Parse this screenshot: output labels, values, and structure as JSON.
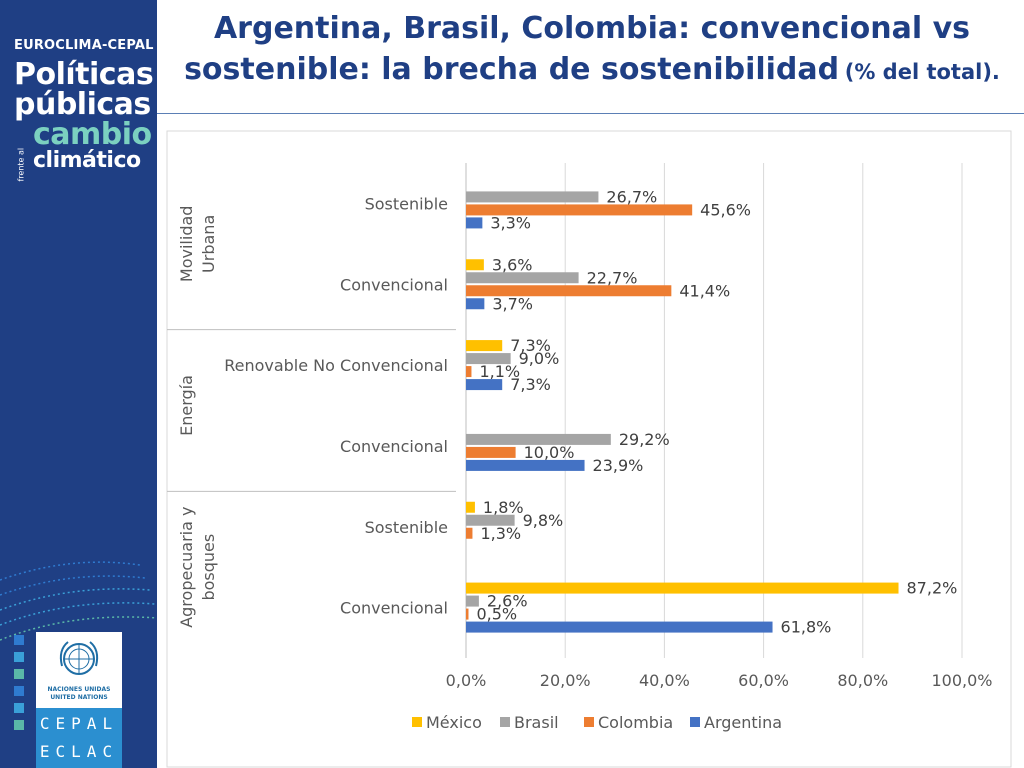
{
  "sidebar": {
    "brand": "EUROCLIMA-CEPAL",
    "line1": "Políticas",
    "line2": "públicas",
    "line3": "cambio",
    "line4": "climático",
    "frente": "frente al",
    "un_name_1": "NACIONES UNIDAS",
    "un_name_2": "UNITED NATIONS",
    "acronym_1": "CEPAL",
    "acronym_2": "ECLAC",
    "colors": {
      "background": "#1f3f84",
      "accent": "#7bd1c0",
      "un_blue": "#2b8fd0"
    },
    "icons": [
      "un-emblem-icon"
    ]
  },
  "header": {
    "title": "Argentina, Brasil, Colombia: convencional vs sostenible: la brecha de sostenibilidad",
    "title_unit": "(% del total)."
  },
  "chart_data": {
    "type": "bar",
    "orientation": "horizontal",
    "groups": [
      {
        "name": "Movilidad Urbana",
        "categories": [
          "Sostenible",
          "Convencional"
        ]
      },
      {
        "name": "Energía",
        "categories": [
          "Renovable No Convencional",
          "Convencional"
        ]
      },
      {
        "name": "Agropecuaria y bosques",
        "categories": [
          "Sostenible",
          "Convencional"
        ]
      }
    ],
    "series": [
      {
        "name": "México",
        "color": "#ffc000",
        "values": [
          null,
          3.6,
          7.3,
          null,
          1.8,
          87.2
        ],
        "labels": [
          "",
          "3,6%",
          "7,3%",
          "",
          "1,8%",
          "87,2%"
        ]
      },
      {
        "name": "Brasil",
        "color": "#a5a5a5",
        "values": [
          26.7,
          22.7,
          9.0,
          29.2,
          9.8,
          2.6
        ],
        "labels": [
          "26,7%",
          "22,7%",
          "9,0%",
          "29,2%",
          "9,8%",
          "2,6%"
        ]
      },
      {
        "name": "Colombia",
        "color": "#ed7d31",
        "values": [
          45.6,
          41.4,
          1.1,
          10.0,
          1.3,
          0.5
        ],
        "labels": [
          "45,6%",
          "41,4%",
          "1,1%",
          "10,0%",
          "1,3%",
          "0,5%"
        ]
      },
      {
        "name": "Argentina",
        "color": "#4472c4",
        "values": [
          3.3,
          3.7,
          7.3,
          23.9,
          null,
          61.8
        ],
        "labels": [
          "3,3%",
          "3,7%",
          "7,3%",
          "23,9%",
          "",
          "61,8%"
        ]
      }
    ],
    "xlim": [
      0,
      100
    ],
    "xticks": [
      "0,0%",
      "20,0%",
      "40,0%",
      "60,0%",
      "80,0%",
      "100,0%"
    ],
    "grid": true,
    "legend_position": "bottom"
  }
}
